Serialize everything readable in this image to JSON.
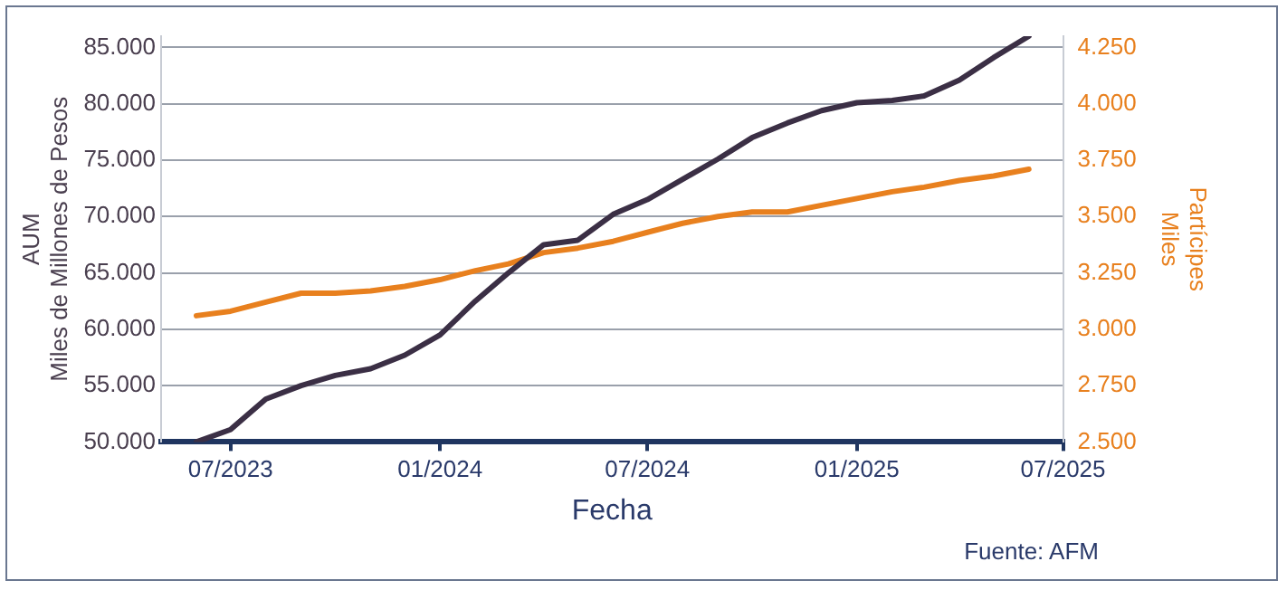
{
  "chart_data": {
    "type": "line",
    "xlabel": "Fecha",
    "ylabel": "AUM\nMiles de Millones de Pesos",
    "y2label": "Partícipes\nMiles",
    "annotations": [
      "Fuente: AFM"
    ],
    "x": [
      "2023-06",
      "2023-07",
      "2023-08",
      "2023-09",
      "2023-10",
      "2023-11",
      "2023-12",
      "2024-01",
      "2024-02",
      "2024-03",
      "2024-04",
      "2024-05",
      "2024-06",
      "2024-07",
      "2024-08",
      "2024-09",
      "2024-10",
      "2024-11",
      "2024-12",
      "2025-01",
      "2025-02",
      "2025-03",
      "2025-04",
      "2025-05",
      "2025-06"
    ],
    "series": [
      {
        "color": "#3b2f45",
        "values": [
          50000,
          51100,
          53800,
          55000,
          55900,
          56500,
          57700,
          59500,
          62500,
          65000,
          67500,
          67900,
          70200,
          71500,
          73300,
          75100,
          77000,
          78300,
          79400,
          80100,
          80300,
          80700,
          82100,
          84100,
          86000
        ]
      },
      {
        "color": "#e8801e",
        "axis": "y2",
        "values": [
          3060,
          3080,
          3120,
          3160,
          3160,
          3170,
          3190,
          3220,
          3260,
          3290,
          3340,
          3360,
          3390,
          3430,
          3470,
          3500,
          3520,
          3520,
          3550,
          3580,
          3610,
          3630,
          3660,
          3680,
          3710
        ]
      }
    ],
    "xlim": [
      "2023-05",
      "2025-07"
    ],
    "xticks": [
      {
        "value": "2023-07",
        "label": "07/2023"
      },
      {
        "value": "2024-01",
        "label": "01/2024"
      },
      {
        "value": "2024-07",
        "label": "07/2024"
      },
      {
        "value": "2025-01",
        "label": "01/2025"
      },
      {
        "value": "2025-07",
        "label": "07/2025"
      }
    ],
    "ylim": [
      50000,
      86000
    ],
    "yticks": [
      {
        "value": 50000,
        "label": "50.000"
      },
      {
        "value": 55000,
        "label": "55.000"
      },
      {
        "value": 60000,
        "label": "60.000"
      },
      {
        "value": 65000,
        "label": "65.000"
      },
      {
        "value": 70000,
        "label": "70.000"
      },
      {
        "value": 75000,
        "label": "75.000"
      },
      {
        "value": 80000,
        "label": "80.000"
      },
      {
        "value": 85000,
        "label": "85.000"
      }
    ],
    "y2lim": [
      2500,
      4300
    ],
    "y2ticks": [
      {
        "value": 2500,
        "label": "2.500"
      },
      {
        "value": 2750,
        "label": "2.750"
      },
      {
        "value": 3000,
        "label": "3.000"
      },
      {
        "value": 3250,
        "label": "3.250"
      },
      {
        "value": 3500,
        "label": "3.500"
      },
      {
        "value": 3750,
        "label": "3.750"
      },
      {
        "value": 4000,
        "label": "4.000"
      },
      {
        "value": 4250,
        "label": "4.250"
      }
    ],
    "grid": "y",
    "legend": false,
    "marker": "none",
    "line_style": "solid"
  }
}
